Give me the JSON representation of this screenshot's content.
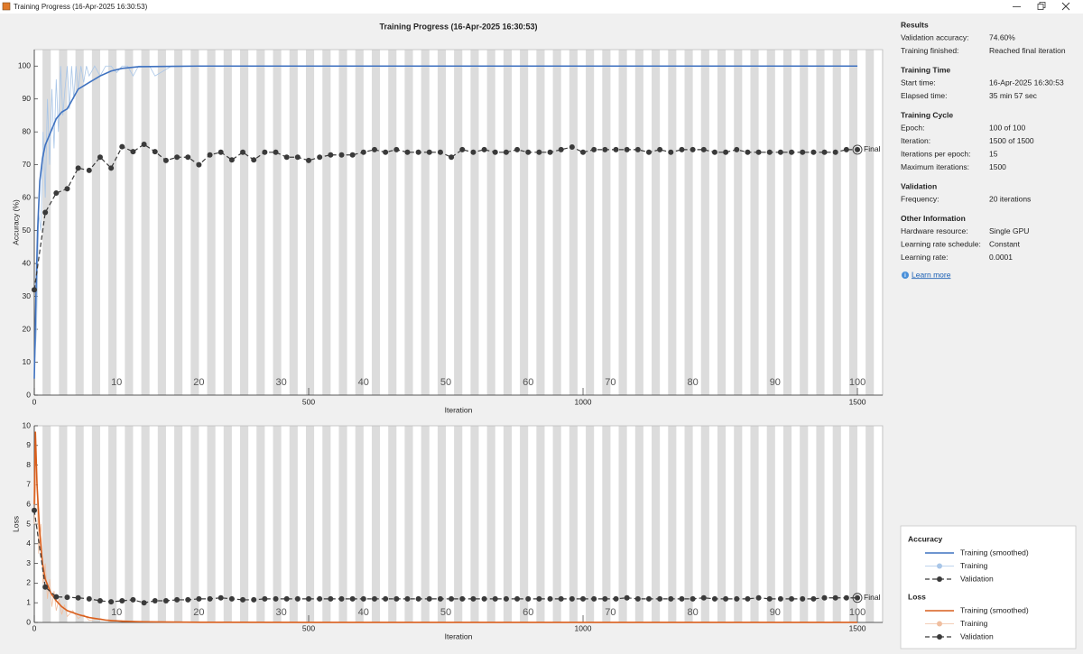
{
  "window": {
    "title": "Training Progress (16-Apr-2025 16:30:53)"
  },
  "chart_data": [
    {
      "type": "line",
      "title": "Training Progress (16-Apr-2025 16:30:53)",
      "xlabel": "Iteration",
      "ylabel": "Accuracy (%)",
      "legend_title": "Accuracy",
      "xlim": [
        0,
        1546
      ],
      "ylim": [
        0,
        105
      ],
      "xticks": [
        0,
        500,
        1000,
        1500
      ],
      "yticks": [
        0,
        10,
        20,
        30,
        40,
        50,
        60,
        70,
        80,
        90,
        100
      ],
      "grid": false,
      "epoch_ticks": [
        {
          "value": 150,
          "label": "10"
        },
        {
          "value": 300,
          "label": "20"
        },
        {
          "value": 450,
          "label": "30"
        },
        {
          "value": 600,
          "label": "40"
        },
        {
          "value": 750,
          "label": "50"
        },
        {
          "value": 900,
          "label": "60"
        },
        {
          "value": 1050,
          "label": "70"
        },
        {
          "value": 1200,
          "label": "80"
        },
        {
          "value": 1350,
          "label": "90"
        },
        {
          "value": 1500,
          "label": "100"
        }
      ],
      "final_label": "Final",
      "series": [
        {
          "name": "Training (smoothed)",
          "color": "#3f72c0",
          "line_style": "solid",
          "width": 1.6,
          "x": [
            0,
            3,
            6,
            10,
            15,
            20,
            30,
            40,
            50,
            60,
            70,
            80,
            100,
            120,
            140,
            160,
            190,
            250,
            300,
            1500
          ],
          "values": [
            5,
            30,
            50,
            65,
            72,
            76,
            80,
            84,
            86,
            87,
            90,
            93,
            95,
            97,
            98.5,
            99.3,
            99.8,
            99.9,
            100,
            100
          ]
        },
        {
          "name": "Training",
          "color": "#a9c6e8",
          "line_style": "solid",
          "width": 0.8,
          "x": [
            0,
            4,
            8,
            12,
            16,
            20,
            24,
            28,
            32,
            36,
            40,
            44,
            48,
            52,
            56,
            60,
            64,
            68,
            72,
            76,
            80,
            85,
            90,
            95,
            100,
            110,
            120,
            130,
            140,
            150,
            160,
            170,
            180,
            190,
            200,
            210,
            220,
            250,
            300,
            350,
            400,
            1500
          ],
          "values": [
            8,
            20,
            55,
            50,
            80,
            60,
            90,
            70,
            93,
            75,
            96,
            80,
            100,
            85,
            93,
            100,
            87,
            100,
            90,
            100,
            93,
            100,
            95,
            100,
            97,
            100,
            97,
            100,
            100,
            98,
            100,
            100,
            97,
            100,
            100,
            100,
            97,
            100,
            100,
            100,
            100,
            100
          ]
        },
        {
          "name": "Validation",
          "color": "#3a3a3a",
          "line_style": "dashed",
          "marker": "o",
          "width": 1.2,
          "x": [
            0,
            20,
            40,
            60,
            80,
            100,
            120,
            140,
            160,
            180,
            200,
            220,
            240,
            260,
            280,
            300,
            320,
            340,
            360,
            380,
            400,
            420,
            440,
            460,
            480,
            500,
            520,
            540,
            560,
            580,
            600,
            620,
            640,
            660,
            680,
            700,
            720,
            740,
            760,
            780,
            800,
            820,
            840,
            860,
            880,
            900,
            920,
            940,
            960,
            980,
            1000,
            1020,
            1040,
            1060,
            1080,
            1100,
            1120,
            1140,
            1160,
            1180,
            1200,
            1220,
            1240,
            1260,
            1280,
            1300,
            1320,
            1340,
            1360,
            1380,
            1400,
            1420,
            1440,
            1460,
            1480,
            1500
          ],
          "values": [
            32,
            55.5,
            61.4,
            62.7,
            69,
            68.3,
            72.3,
            69,
            75.5,
            74,
            76.2,
            74,
            71.3,
            72.3,
            72.3,
            70,
            73,
            73.8,
            71.5,
            73.8,
            71.5,
            73.8,
            73.8,
            72.3,
            72.3,
            71.3,
            72.3,
            73,
            73,
            73,
            73.8,
            74.6,
            73.8,
            74.6,
            73.8,
            73.8,
            73.8,
            73.8,
            72.3,
            74.6,
            73.8,
            74.6,
            73.8,
            73.8,
            74.6,
            73.8,
            73.8,
            73.8,
            74.6,
            75.4,
            73.8,
            74.6,
            74.6,
            74.6,
            74.6,
            74.6,
            73.8,
            74.6,
            73.8,
            74.6,
            74.6,
            74.6,
            73.8,
            73.8,
            74.6,
            73.8,
            73.8,
            73.8,
            73.8,
            73.8,
            73.8,
            73.8,
            73.8,
            73.8,
            74.6,
            74.6
          ]
        }
      ]
    },
    {
      "type": "line",
      "xlabel": "Iteration",
      "ylabel": "Loss",
      "legend_title": "Loss",
      "xlim": [
        0,
        1546
      ],
      "ylim": [
        0,
        10
      ],
      "xticks": [
        0,
        500,
        1000,
        1500
      ],
      "yticks": [
        0,
        1,
        2,
        3,
        4,
        5,
        6,
        7,
        8,
        9,
        10
      ],
      "grid": false,
      "epoch_ticks": [
        {
          "value": 150,
          "label": "10"
        },
        {
          "value": 300,
          "label": "20"
        },
        {
          "value": 450,
          "label": "30"
        },
        {
          "value": 600,
          "label": "40"
        },
        {
          "value": 750,
          "label": "50"
        },
        {
          "value": 900,
          "label": "60"
        },
        {
          "value": 1050,
          "label": "70"
        },
        {
          "value": 1200,
          "label": "80"
        },
        {
          "value": 1350,
          "label": "90"
        },
        {
          "value": 1500,
          "label": "100"
        }
      ],
      "final_label": "Final",
      "series": [
        {
          "name": "Training (smoothed)",
          "color": "#d95f1d",
          "line_style": "solid",
          "width": 1.6,
          "x": [
            0,
            2,
            5,
            10,
            15,
            20,
            30,
            40,
            50,
            60,
            80,
            100,
            130,
            160,
            200,
            300,
            500,
            1000,
            1500
          ],
          "values": [
            6,
            9.7,
            7,
            4.5,
            3,
            2.2,
            1.5,
            1.1,
            0.8,
            0.6,
            0.4,
            0.25,
            0.12,
            0.06,
            0.03,
            0.01,
            0.005,
            0.002,
            0.001
          ]
        },
        {
          "name": "Training",
          "color": "#f0bfa0",
          "line_style": "solid",
          "width": 0.8,
          "x": [
            0,
            4,
            8,
            12,
            16,
            20,
            24,
            28,
            32,
            36,
            40,
            45,
            50,
            55,
            60,
            70,
            80,
            90,
            100,
            120,
            140,
            160,
            200,
            300,
            1500
          ],
          "values": [
            5,
            8,
            3.5,
            5,
            2,
            3,
            1.2,
            2.2,
            0.8,
            1.6,
            0.6,
            1.2,
            0.4,
            0.9,
            0.3,
            0.6,
            0.2,
            0.4,
            0.1,
            0.2,
            0.05,
            0.1,
            0.02,
            0.01,
            0
          ]
        },
        {
          "name": "Validation",
          "color": "#3a3a3a",
          "line_style": "dashed",
          "marker": "o",
          "width": 1.2,
          "x": [
            0,
            20,
            40,
            60,
            80,
            100,
            120,
            140,
            160,
            180,
            200,
            220,
            240,
            260,
            280,
            300,
            320,
            340,
            360,
            380,
            400,
            420,
            440,
            460,
            480,
            500,
            520,
            540,
            560,
            580,
            600,
            620,
            640,
            660,
            680,
            700,
            720,
            740,
            760,
            780,
            800,
            820,
            840,
            860,
            880,
            900,
            920,
            940,
            960,
            980,
            1000,
            1020,
            1040,
            1060,
            1080,
            1100,
            1120,
            1140,
            1160,
            1180,
            1200,
            1220,
            1240,
            1260,
            1280,
            1300,
            1320,
            1340,
            1360,
            1380,
            1400,
            1420,
            1440,
            1460,
            1480,
            1500
          ],
          "values": [
            5.7,
            1.8,
            1.3,
            1.28,
            1.25,
            1.2,
            1.1,
            1.05,
            1.1,
            1.15,
            1.0,
            1.1,
            1.1,
            1.15,
            1.15,
            1.2,
            1.2,
            1.25,
            1.2,
            1.15,
            1.15,
            1.2,
            1.2,
            1.2,
            1.2,
            1.2,
            1.2,
            1.2,
            1.2,
            1.2,
            1.2,
            1.2,
            1.2,
            1.2,
            1.2,
            1.2,
            1.2,
            1.2,
            1.2,
            1.2,
            1.2,
            1.2,
            1.2,
            1.2,
            1.2,
            1.2,
            1.2,
            1.2,
            1.2,
            1.2,
            1.2,
            1.2,
            1.2,
            1.2,
            1.25,
            1.2,
            1.2,
            1.2,
            1.2,
            1.2,
            1.2,
            1.25,
            1.2,
            1.2,
            1.2,
            1.2,
            1.25,
            1.2,
            1.2,
            1.2,
            1.2,
            1.2,
            1.25,
            1.25,
            1.25,
            1.25
          ]
        }
      ]
    }
  ],
  "info_panel": {
    "sections": [
      {
        "heading": "Results",
        "rows": [
          {
            "label": "Validation accuracy:",
            "value": "74.60%"
          },
          {
            "label": "Training finished:",
            "value": "Reached final iteration"
          }
        ]
      },
      {
        "heading": "Training Time",
        "rows": [
          {
            "label": "Start time:",
            "value": "16-Apr-2025 16:30:53"
          },
          {
            "label": "Elapsed time:",
            "value": "35 min 57 sec"
          }
        ]
      },
      {
        "heading": "Training Cycle",
        "rows": [
          {
            "label": "Epoch:",
            "value": "100 of 100"
          },
          {
            "label": "Iteration:",
            "value": "1500 of 1500"
          },
          {
            "label": "Iterations per epoch:",
            "value": "15"
          },
          {
            "label": "Maximum iterations:",
            "value": "1500"
          }
        ]
      },
      {
        "heading": "Validation",
        "rows": [
          {
            "label": "Frequency:",
            "value": "20 iterations"
          }
        ]
      },
      {
        "heading": "Other Information",
        "rows": [
          {
            "label": "Hardware resource:",
            "value": "Single GPU"
          },
          {
            "label": "Learning rate schedule:",
            "value": "Constant"
          },
          {
            "label": "Learning rate:",
            "value": "0.0001"
          }
        ]
      }
    ],
    "link": "Learn more"
  }
}
